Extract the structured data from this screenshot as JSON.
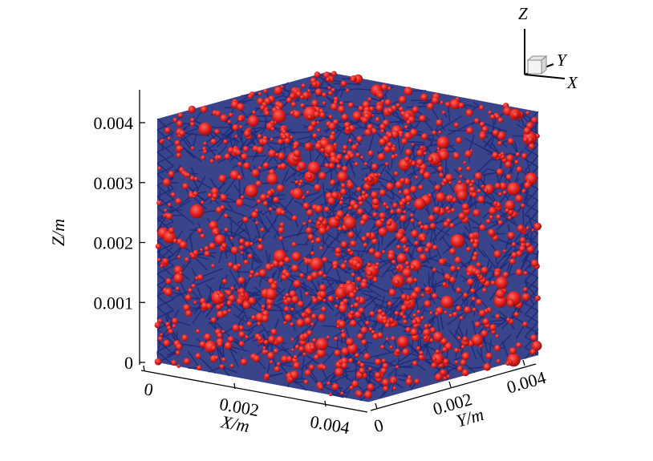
{
  "chart_data": {
    "type": "scatter",
    "subtype": "3d-particle-network",
    "title": "",
    "xlabel": "X/m",
    "ylabel": "Y/m",
    "zlabel": "Z/m",
    "xlim": [
      0,
      0.0045
    ],
    "ylim": [
      0,
      0.0045
    ],
    "zlim": [
      0,
      0.0045
    ],
    "x_ticks": [
      "0",
      "0.002",
      "0.004"
    ],
    "x_tick_values": [
      0,
      0.002,
      0.004
    ],
    "y_ticks": [
      "0",
      "0.002",
      "0.004"
    ],
    "y_tick_values": [
      0,
      0.002,
      0.004
    ],
    "z_ticks": [
      "0",
      "0.001",
      "0.002",
      "0.003",
      "0.004"
    ],
    "z_tick_values": [
      0,
      0.001,
      0.002,
      0.003,
      0.004
    ],
    "grid": false,
    "legend": false,
    "series": [
      {
        "name": "",
        "kind": "particles",
        "color": "#d81e1e",
        "edge_color": "#8b0000"
      },
      {
        "name": "",
        "kind": "bonds",
        "color": "#1f2a7a"
      }
    ],
    "triad": {
      "z": "Z",
      "y": "Y",
      "x": "X"
    }
  }
}
